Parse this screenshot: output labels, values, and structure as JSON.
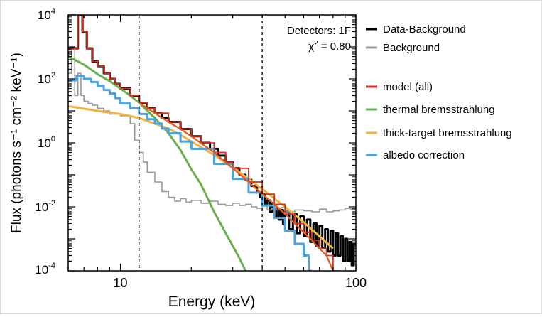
{
  "chart_data": {
    "type": "line",
    "title": "",
    "xlabel": "Energy (keV)",
    "ylabel": "Flux  (photons s⁻¹ cm⁻² keV⁻¹)",
    "x_scale": "log",
    "y_scale": "log",
    "xlim": [
      6,
      100
    ],
    "ylim": [
      0.0001,
      10000
    ],
    "x_ticks": [
      {
        "value": 10,
        "label": "10"
      },
      {
        "value": 100,
        "label": "100"
      }
    ],
    "y_ticks": [
      {
        "value": 0.0001,
        "base": "10",
        "exp": "-4"
      },
      {
        "value": 0.01,
        "base": "10",
        "exp": "-2"
      },
      {
        "value": 1,
        "base": "10",
        "exp": "0"
      },
      {
        "value": 100,
        "base": "10",
        "exp": "2"
      },
      {
        "value": 10000,
        "base": "10",
        "exp": "4"
      }
    ],
    "vlines": [
      12,
      40
    ],
    "annotations": {
      "detectors": "Detectors: 1F",
      "chi_symbol": "χ",
      "chi_exp": "2",
      "chi_value": " = 0.80"
    },
    "legend": {
      "position": "right",
      "entries": [
        {
          "name": "Data-Background",
          "color": "#000000"
        },
        {
          "name": "Background",
          "color": "#999999"
        },
        {
          "name": "model (all)",
          "color": "#d7301f"
        },
        {
          "name": "thermal bremsstrahlung",
          "color": "#6ab04c"
        },
        {
          "name": "thick-target bremsstrahlung",
          "color": "#f0b340"
        },
        {
          "name": "albedo correction",
          "color": "#4aa3df"
        }
      ]
    },
    "series": [
      {
        "name": "Data-Background",
        "color": "#000000",
        "style": "step",
        "width": 3,
        "x": [
          6,
          6.3,
          6.6,
          6.9,
          7.2,
          7.6,
          8.0,
          8.5,
          9,
          9.5,
          10,
          11,
          12,
          13,
          14,
          15,
          16,
          18,
          20,
          22,
          24,
          26,
          28,
          30,
          32,
          34,
          36,
          38,
          39,
          40,
          41,
          42,
          43,
          44,
          45,
          46,
          47,
          48,
          49,
          50,
          52,
          54,
          56,
          58,
          60,
          62,
          64,
          66,
          68,
          70,
          72,
          74,
          76,
          78,
          80,
          82,
          84,
          86,
          88,
          90,
          92,
          94,
          96,
          98
        ],
        "y": [
          900,
          900,
          10000,
          3000,
          900,
          350,
          250,
          150,
          100,
          70,
          50,
          30,
          18,
          12,
          8.5,
          6,
          4.5,
          2.7,
          1.6,
          1.0,
          0.65,
          0.4,
          0.25,
          0.16,
          0.1,
          0.07,
          0.045,
          0.028,
          0.02,
          0.025,
          0.012,
          0.016,
          0.007,
          0.012,
          0.005,
          0.009,
          0.004,
          0.008,
          0.003,
          0.007,
          0.002,
          0.006,
          0.0015,
          0.005,
          0.0012,
          0.004,
          0.0008,
          0.003,
          0.0006,
          0.0025,
          0.0005,
          0.002,
          0.0004,
          0.0018,
          0.0003,
          0.0015,
          0.0003,
          0.0012,
          0.0002,
          0.001,
          0.0002,
          0.0008,
          0.00015,
          0.0007
        ]
      },
      {
        "name": "Background",
        "color": "#999999",
        "style": "step",
        "width": 1.6,
        "x": [
          6,
          6.2,
          6.4,
          6.6,
          6.8,
          7.0,
          7.3,
          7.6,
          8.0,
          8.5,
          9,
          10,
          11,
          11.5,
          12,
          12.5,
          13,
          14,
          15,
          16,
          17,
          18,
          19,
          20,
          22,
          24,
          26,
          28,
          30,
          32,
          34,
          36,
          38,
          40,
          42,
          44,
          46,
          48,
          50,
          55,
          60,
          65,
          70,
          75,
          80,
          85,
          90,
          95,
          100
        ],
        "y": [
          150,
          900,
          30,
          150,
          30,
          20,
          17,
          15,
          12,
          10,
          8,
          7,
          4,
          1.2,
          0.5,
          0.25,
          0.12,
          0.06,
          0.03,
          0.02,
          0.015,
          0.018,
          0.014,
          0.016,
          0.013,
          0.015,
          0.012,
          0.011,
          0.013,
          0.011,
          0.012,
          0.01,
          0.009,
          0.011,
          0.008,
          0.009,
          0.008,
          0.0095,
          0.007,
          0.008,
          0.0075,
          0.007,
          0.0085,
          0.007,
          0.0075,
          0.008,
          0.009,
          0.0085,
          0.0095
        ]
      },
      {
        "name": "thermal bremsstrahlung",
        "color": "#6ab04c",
        "style": "line",
        "width": 3,
        "x": [
          6,
          7,
          8,
          9,
          10,
          11,
          12,
          14,
          16,
          18,
          20,
          22,
          25,
          28,
          30,
          32,
          34
        ],
        "y": [
          500,
          280,
          140,
          85,
          50,
          30,
          18,
          6,
          2,
          0.6,
          0.15,
          0.05,
          0.007,
          0.0015,
          0.0006,
          0.00025,
          0.0001
        ]
      },
      {
        "name": "thick-target bremsstrahlung",
        "color": "#f0b340",
        "style": "line",
        "width": 3,
        "x": [
          6,
          8,
          10,
          12,
          14,
          16,
          18,
          20,
          25,
          30,
          35,
          40,
          50,
          60,
          70,
          80
        ],
        "y": [
          14,
          10,
          8,
          6,
          4,
          2.8,
          1.8,
          1.1,
          0.42,
          0.17,
          0.075,
          0.036,
          0.01,
          0.0033,
          0.0012,
          0.0005
        ]
      },
      {
        "name": "albedo correction",
        "color": "#4aa3df",
        "style": "step",
        "width": 3,
        "x": [
          6,
          6.5,
          7,
          7.5,
          8,
          8.5,
          9,
          9.5,
          10,
          11,
          12,
          13,
          14,
          15,
          16,
          18,
          20,
          25,
          30,
          35,
          40,
          45,
          50,
          55,
          60,
          63
        ],
        "y": [
          90,
          120,
          100,
          80,
          60,
          45,
          35,
          25,
          17,
          12,
          8,
          5.5,
          4,
          2.8,
          2,
          1.1,
          0.65,
          0.22,
          0.075,
          0.028,
          0.011,
          0.0045,
          0.0018,
          0.0007,
          0.0003,
          0.0001
        ]
      },
      {
        "name": "model (all)",
        "color": "#d7301f",
        "style": "step",
        "width": 1.8,
        "x": [
          6,
          6.3,
          6.6,
          6.9,
          7.2,
          7.6,
          8.0,
          8.5,
          9,
          9.5,
          10,
          11,
          12,
          13,
          14,
          16,
          18,
          20,
          22,
          25,
          28,
          30,
          35,
          40,
          45,
          50,
          55,
          60,
          65,
          70,
          75,
          80
        ],
        "y": [
          900,
          900,
          10000,
          3000,
          900,
          350,
          250,
          150,
          100,
          70,
          50,
          30,
          18,
          12,
          8.5,
          4.5,
          2.7,
          1.6,
          1.0,
          0.5,
          0.25,
          0.16,
          0.06,
          0.025,
          0.012,
          0.006,
          0.003,
          0.0016,
          0.0009,
          0.0005,
          0.0003,
          0.0001
        ]
      },
      {
        "name": "model (all) overlay",
        "color": "#e8591a",
        "style": "line",
        "width": 2.2,
        "x": [
          12,
          14,
          16,
          18,
          20,
          25,
          30,
          35,
          40,
          45,
          50,
          55,
          60,
          65,
          70,
          75,
          80
        ],
        "y": [
          18,
          8.5,
          4.5,
          2.7,
          1.6,
          0.5,
          0.16,
          0.06,
          0.025,
          0.012,
          0.006,
          0.003,
          0.0016,
          0.0009,
          0.0005,
          0.0003,
          0.0001
        ]
      }
    ]
  }
}
